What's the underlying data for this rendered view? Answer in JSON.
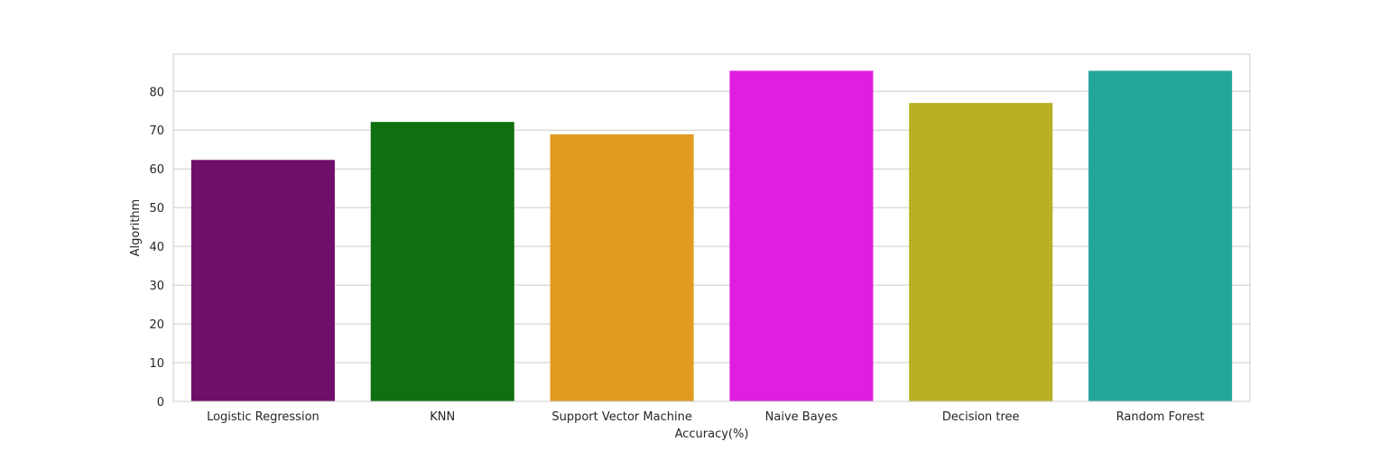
{
  "chart_data": {
    "type": "bar",
    "title": "",
    "xlabel": "Accuracy(%)",
    "ylabel": "Algorithm",
    "categories": [
      "Logistic Regression",
      "KNN",
      "Support Vector Machine",
      "Naive Bayes",
      "Decision tree",
      "Random Forest"
    ],
    "values": [
      62.3,
      72.1,
      68.9,
      85.3,
      77.0,
      85.3
    ],
    "colors": [
      "#6f0f6b",
      "#107010",
      "#e09b20",
      "#e01ee0",
      "#b8b025",
      "#23a79b"
    ],
    "ylim": [
      0,
      89.6
    ],
    "yticks": [
      0,
      10,
      20,
      30,
      40,
      50,
      60,
      70,
      80
    ],
    "grid": true,
    "grid_axis": "y",
    "legend": "none"
  }
}
